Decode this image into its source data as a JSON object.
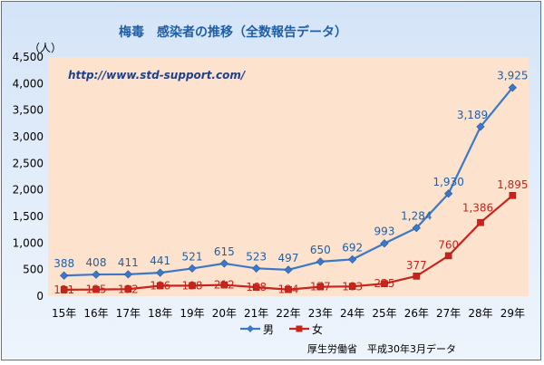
{
  "chart_data": {
    "type": "line",
    "title": "梅毒　感染者の推移（全数報告データ）",
    "unit_label": "（人）",
    "url_text": "http://www.std-support.com/",
    "source": "厚生労働省　平成30年3月データ",
    "categories": [
      "15年",
      "16年",
      "17年",
      "18年",
      "19年",
      "20年",
      "21年",
      "22年",
      "23年",
      "24年",
      "25年",
      "26年",
      "27年",
      "28年",
      "29年"
    ],
    "yticks": [
      "0",
      "500",
      "1,000",
      "1,500",
      "2,000",
      "2,500",
      "3,000",
      "3,500",
      "4,000",
      "4,500"
    ],
    "ylim": [
      0,
      4500
    ],
    "grid": false,
    "legend_position": "bottom",
    "series": [
      {
        "name": "男",
        "color": "#3c78c8",
        "marker": "diamond",
        "values": [
          388,
          408,
          411,
          441,
          521,
          615,
          523,
          497,
          650,
          692,
          993,
          1284,
          1930,
          3189,
          3925
        ],
        "labels": [
          "388",
          "408",
          "411",
          "441",
          "521",
          "615",
          "523",
          "497",
          "650",
          "692",
          "993",
          "1,284",
          "1,930",
          "3,189",
          "3,925"
        ]
      },
      {
        "name": "女",
        "color": "#c8241c",
        "marker": "square",
        "values": [
          121,
          125,
          132,
          196,
          198,
          212,
          168,
          124,
          177,
          183,
          235,
          377,
          760,
          1386,
          1895
        ],
        "labels": [
          "121",
          "125",
          "132",
          "196",
          "198",
          "212",
          "168",
          "124",
          "177",
          "183",
          "235",
          "377",
          "760",
          "1,386",
          "1,895"
        ]
      }
    ]
  },
  "colors": {
    "plot_background": "#fde3ce",
    "title": "#1f5fa8",
    "url": "#1e3f8a"
  }
}
